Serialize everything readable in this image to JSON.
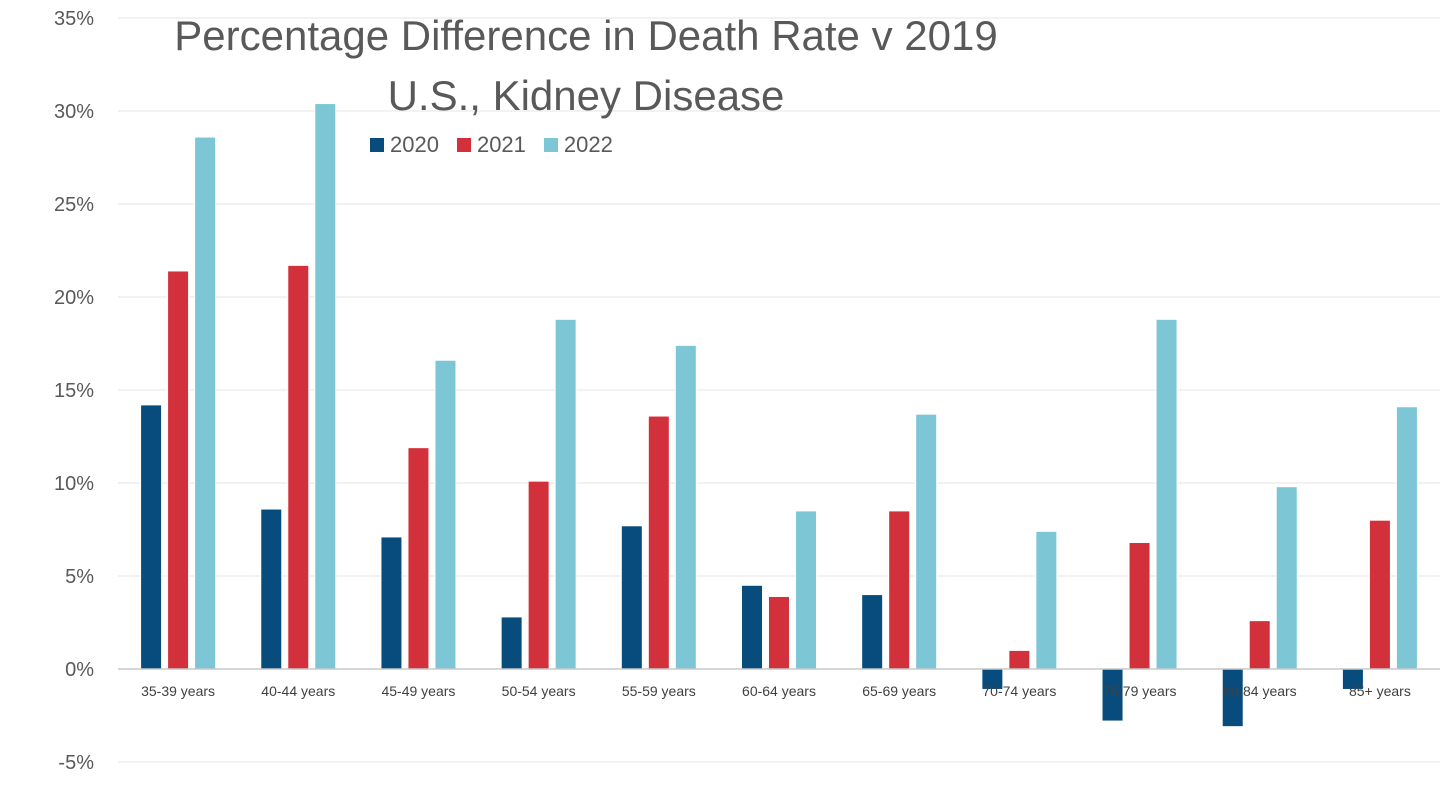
{
  "chart_data": {
    "type": "bar",
    "title": "Percentage Difference in Death Rate v 2019",
    "subtitle": "U.S., Kidney Disease",
    "categories": [
      "35-39 years",
      "40-44 years",
      "45-49 years",
      "50-54 years",
      "55-59 years",
      "60-64 years",
      "65-69 years",
      "70-74 years",
      "75-79 years",
      "80-84 years",
      "85+ years"
    ],
    "series": [
      {
        "name": "2020",
        "color": "#084C7E",
        "values": [
          14.2,
          8.6,
          7.1,
          2.8,
          7.7,
          4.5,
          4.0,
          -1.1,
          -2.8,
          -3.1,
          -1.1
        ]
      },
      {
        "name": "2021",
        "color": "#D2303A",
        "values": [
          21.4,
          21.7,
          11.9,
          10.1,
          13.6,
          3.9,
          8.5,
          1.0,
          6.8,
          2.6,
          8.0
        ]
      },
      {
        "name": "2022",
        "color": "#7CC6D6",
        "values": [
          28.6,
          30.4,
          16.6,
          18.8,
          17.4,
          8.5,
          13.7,
          7.4,
          18.8,
          9.8,
          14.1
        ]
      }
    ],
    "y_ticks": [
      "35%",
      "30%",
      "25%",
      "20%",
      "15%",
      "10%",
      "5%",
      "0%",
      "-5%"
    ],
    "ylim": [
      -5,
      35
    ],
    "xlabel": "",
    "ylabel": "",
    "grid": true,
    "legend_position": "top-center"
  }
}
